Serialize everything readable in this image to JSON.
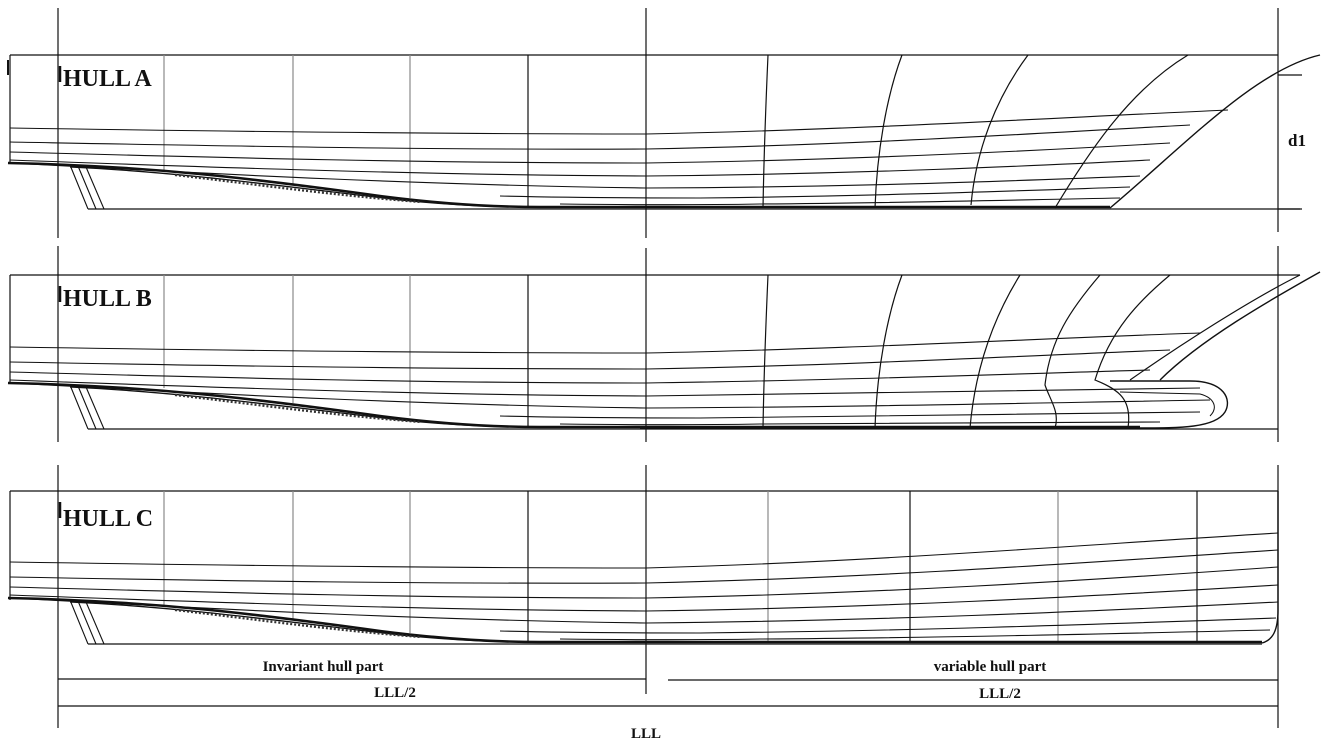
{
  "hulls": [
    {
      "label": "HULL A",
      "bow": "raked"
    },
    {
      "label": "HULL B",
      "bow": "bulbous"
    },
    {
      "label": "HULL C",
      "bow": "vertical"
    }
  ],
  "annotations": {
    "draft_label": "d1",
    "invariant_label": "Invariant hull part",
    "variable_label": "variable hull part",
    "half_length_left": "LLL/2",
    "half_length_right": "LLL/2",
    "total_length": "LLL"
  },
  "colors": {
    "line": "#111111",
    "grid": "#8a8a8a"
  }
}
